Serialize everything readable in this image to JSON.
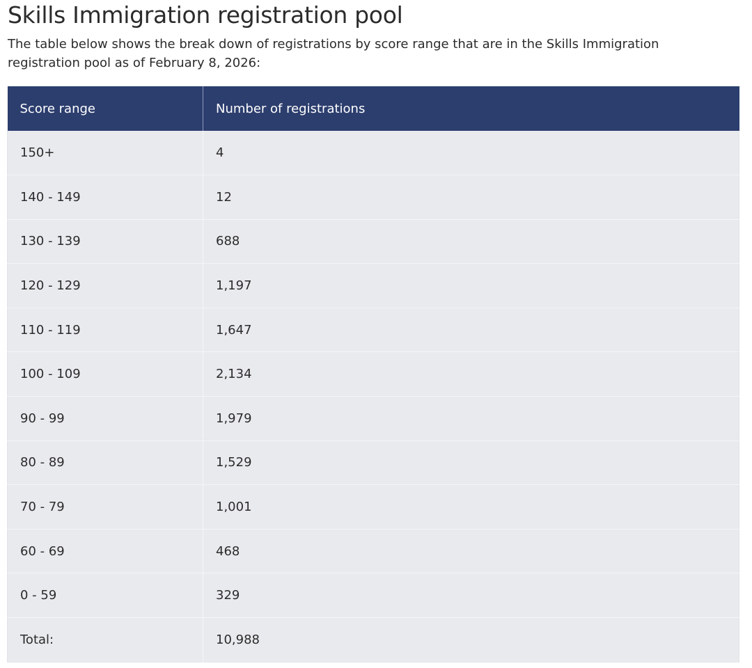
{
  "page": {
    "title": "Skills Immigration registration pool",
    "intro": "The table below shows the break down of registrations by score range that are in the Skills Immigration registration pool as of February 8, 2026:"
  },
  "table": {
    "headers": [
      "Score range",
      "Number of registrations"
    ],
    "rows": [
      {
        "range": "150+",
        "count": "4"
      },
      {
        "range": "140 - 149",
        "count": "12"
      },
      {
        "range": "130 - 139",
        "count": "688"
      },
      {
        "range": "120 - 129",
        "count": "1,197"
      },
      {
        "range": "110 - 119",
        "count": "1,647"
      },
      {
        "range": "100 - 109",
        "count": "2,134"
      },
      {
        "range": "90 - 99",
        "count": "1,979"
      },
      {
        "range": "80 - 89",
        "count": "1,529"
      },
      {
        "range": "70 - 79",
        "count": "1,001"
      },
      {
        "range": "60 - 69",
        "count": "468"
      },
      {
        "range": "0 - 59",
        "count": "329"
      },
      {
        "range": "Total:",
        "count": "10,988"
      }
    ]
  },
  "colors": {
    "header_bg": "#2c3e6e",
    "row_bg": "#e9eaee",
    "text": "#2b2b2b"
  }
}
